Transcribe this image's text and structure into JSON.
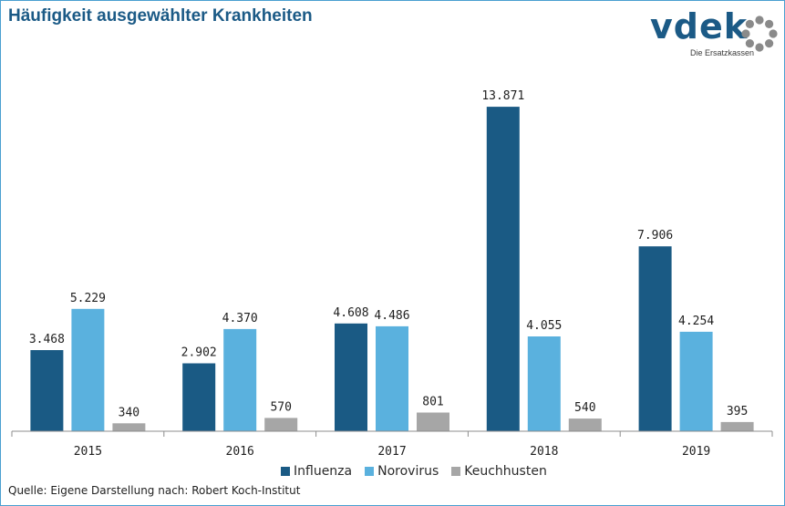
{
  "chart_data": {
    "type": "bar",
    "title": "Häufigkeit ausgewählter Krankheiten",
    "categories": [
      "2015",
      "2016",
      "2017",
      "2018",
      "2019"
    ],
    "series": [
      {
        "name": "Influenza",
        "color": "#1a5a84",
        "values": [
          3468,
          2902,
          4608,
          13871,
          7906
        ],
        "labels": [
          "3.468",
          "2.902",
          "4.608",
          "13.871",
          "7.906"
        ]
      },
      {
        "name": "Norovirus",
        "color": "#5ab1de",
        "values": [
          5229,
          4370,
          4486,
          4055,
          4254
        ],
        "labels": [
          "5.229",
          "4.370",
          "4.486",
          "4.055",
          "4.254"
        ]
      },
      {
        "name": "Keuchhusten",
        "color": "#a6a6a6",
        "values": [
          340,
          570,
          801,
          540,
          395
        ],
        "labels": [
          "340",
          "570",
          "801",
          "540",
          "395"
        ]
      }
    ],
    "ylim": [
      0,
      14500
    ],
    "grid": false,
    "legend_position": "bottom"
  },
  "logo": {
    "word": "vdek",
    "subtitle": "Die Ersatzkassen",
    "ring_color": "#8a8a8a"
  },
  "footer": {
    "source": "Quelle: Eigene Darstellung nach: Robert Koch-Institut"
  }
}
